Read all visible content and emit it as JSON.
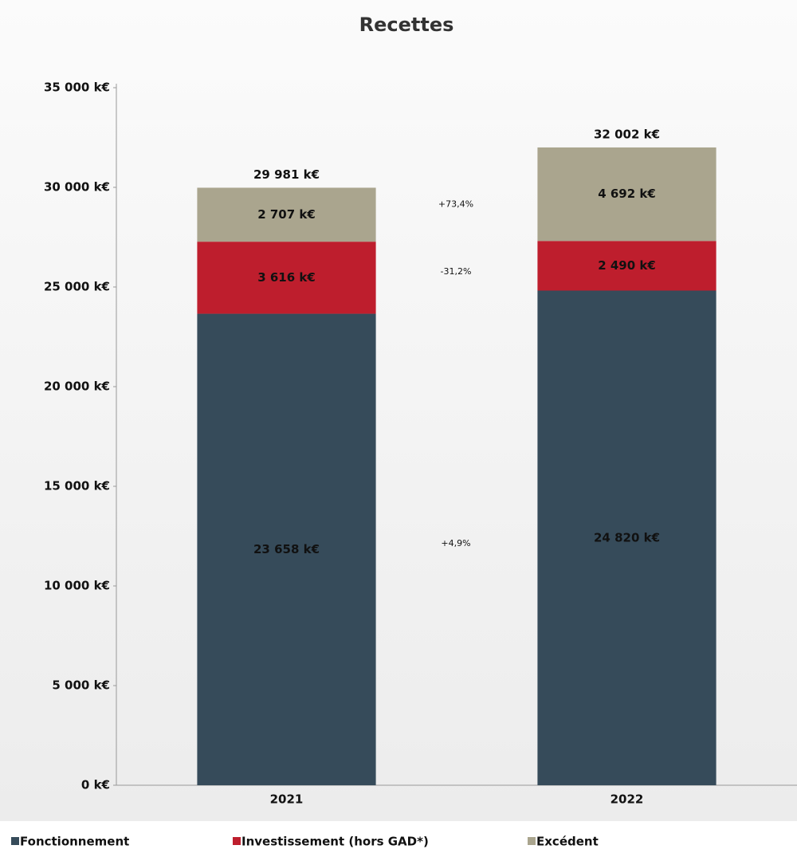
{
  "chart_data": {
    "type": "stacked-bar",
    "title": "Recettes",
    "categories": [
      "2021",
      "2022"
    ],
    "series": [
      {
        "name": "Fonctionnement",
        "color": "#364b5a",
        "values": [
          23658,
          24820
        ],
        "value_labels": [
          "23 658 k€",
          "24 820 k€"
        ]
      },
      {
        "name": "Investissement (hors GAD*)",
        "color": "#be1e2d",
        "values": [
          3616,
          2490
        ],
        "value_labels": [
          "3 616 k€",
          "2 490 k€"
        ]
      },
      {
        "name": "Excédent",
        "color": "#aaa58e",
        "values": [
          2707,
          4692
        ],
        "value_labels": [
          "2 707 k€",
          "4 692 k€"
        ]
      }
    ],
    "totals": {
      "values": [
        29981,
        32002
      ],
      "value_labels": [
        "29 981 k€",
        "32 002 k€"
      ]
    },
    "annotations": [
      {
        "text": "+4,9%"
      },
      {
        "text": "-31,2%"
      },
      {
        "text": "+73,4%"
      }
    ],
    "ylim": [
      0,
      35000
    ],
    "yticks": [
      {
        "value": 0,
        "label": "0 k€"
      },
      {
        "value": 5000,
        "label": "5 000 k€"
      },
      {
        "value": 10000,
        "label": "10 000 k€"
      },
      {
        "value": 15000,
        "label": "15 000 k€"
      },
      {
        "value": 20000,
        "label": "20 000 k€"
      },
      {
        "value": 25000,
        "label": "25 000 k€"
      },
      {
        "value": 30000,
        "label": "30 000 k€"
      },
      {
        "value": 35000,
        "label": "35 000 k€"
      }
    ],
    "legend": "bottom"
  }
}
